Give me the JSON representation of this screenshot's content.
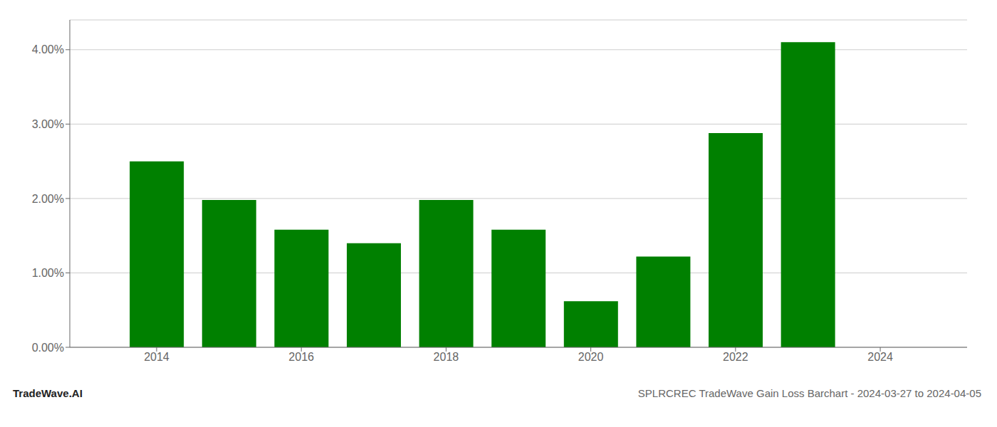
{
  "chart_data": {
    "type": "bar",
    "title": "SPLRCREC TradeWave Gain Loss Barchart - 2024-03-27 to 2024-04-05",
    "annotations": [
      {
        "text": "TradeWave.AI"
      }
    ],
    "x": [
      2014,
      2015,
      2016,
      2017,
      2018,
      2019,
      2020,
      2021,
      2022,
      2023
    ],
    "values": [
      0.025,
      0.0198,
      0.0158,
      0.014,
      0.0198,
      0.0158,
      0.0062,
      0.0122,
      0.0288,
      0.041
    ],
    "color": "#008000",
    "xlim": [
      2012.8,
      2025.2
    ],
    "xticks": [
      2014,
      2016,
      2018,
      2020,
      2022,
      2024
    ],
    "ylim": [
      0,
      0.044
    ],
    "yticks": [
      {
        "value": 0,
        "label": "0.00%"
      },
      {
        "value": 0.01,
        "label": "1.00%"
      },
      {
        "value": 0.02,
        "label": "2.00%"
      },
      {
        "value": 0.03,
        "label": "3.00%"
      },
      {
        "value": 0.04,
        "label": "4.00%"
      }
    ],
    "grid": true
  }
}
